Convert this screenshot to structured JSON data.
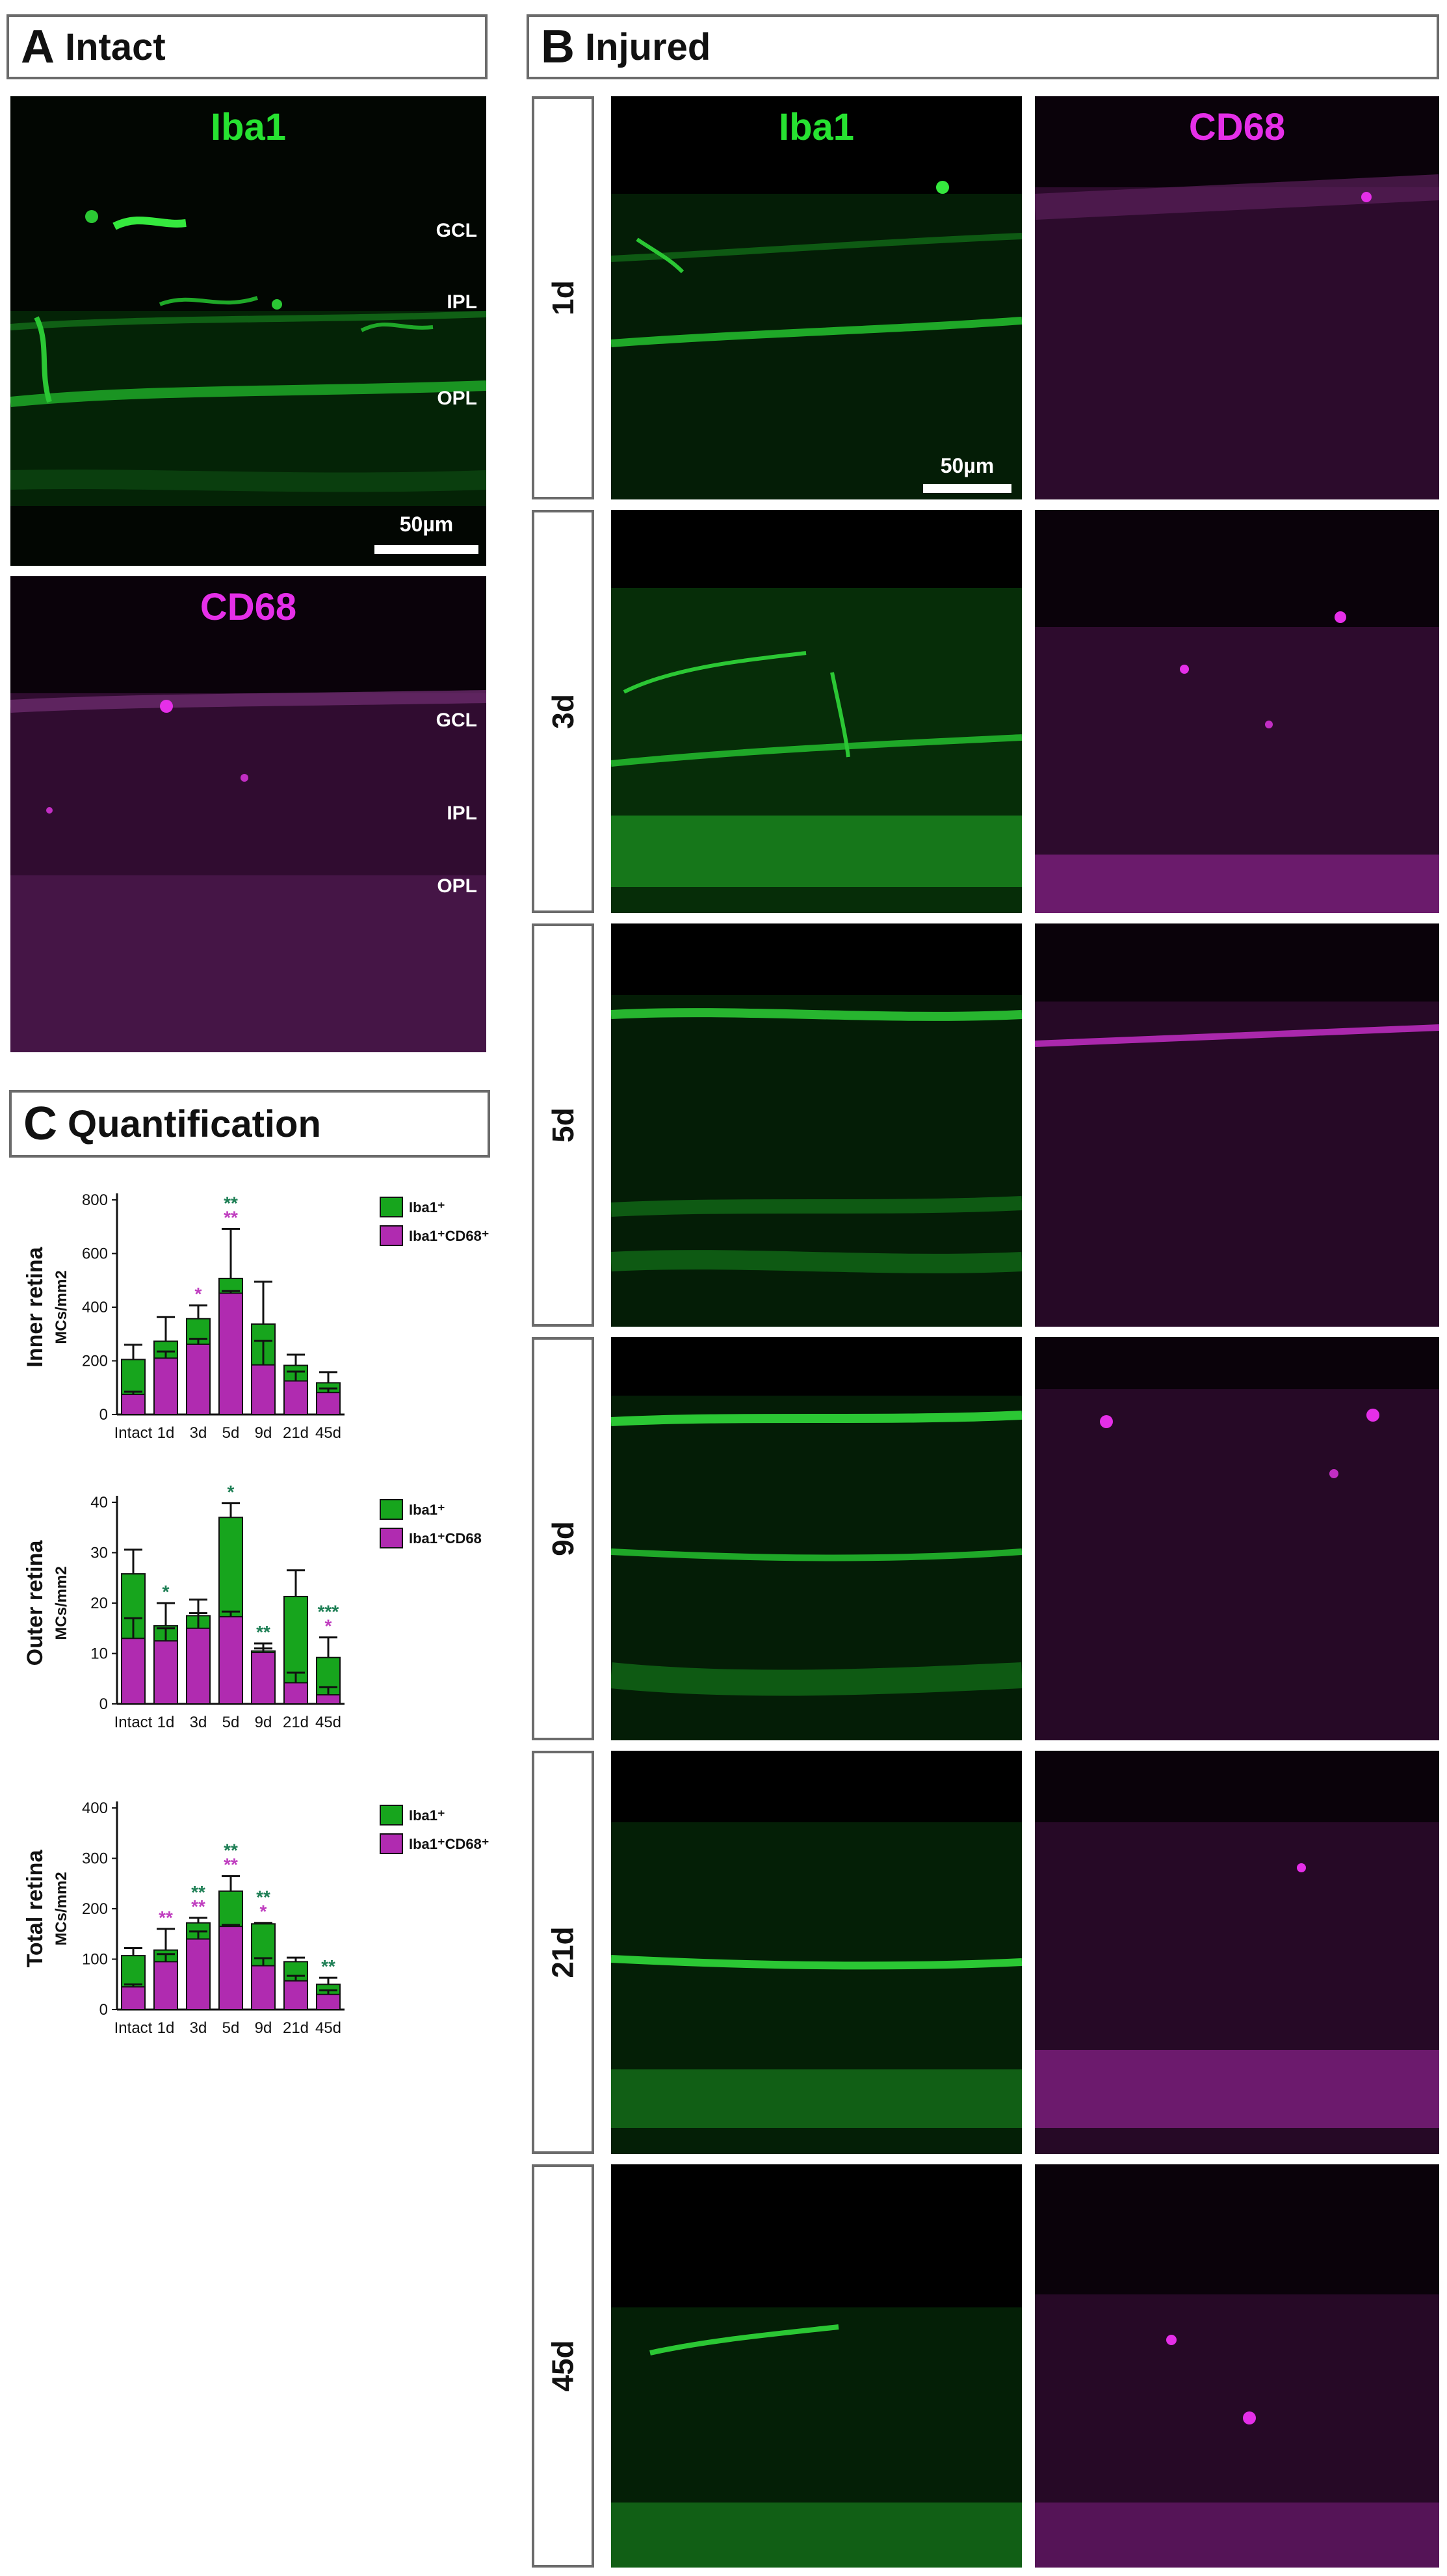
{
  "panels": {
    "A": {
      "letter": "A",
      "title": "Intact"
    },
    "B": {
      "letter": "B",
      "title": "Injured"
    },
    "C": {
      "letter": "C",
      "title": "Quantification"
    }
  },
  "image_labels": {
    "iba1": "Iba1",
    "cd68": "CD68",
    "gcl": "GCL",
    "ipl": "IPL",
    "opl": "OPL",
    "scale": "50µm"
  },
  "timepoints": [
    "1d",
    "3d",
    "5d",
    "9d",
    "21d",
    "45d"
  ],
  "colors": {
    "green": "#17a51d",
    "magenta": "#b02bb0",
    "green_sig": "#1e7f55",
    "magenta_sig": "#c03fc0",
    "label_green": "#27e231",
    "label_magenta": "#e52fe8"
  },
  "chart_data": [
    {
      "type": "bar",
      "stacked": "overlay",
      "ylabel_main": "Inner retina",
      "ylabel_sub": "MCs/mm2",
      "categories": [
        "Intact",
        "1d",
        "3d",
        "5d",
        "9d",
        "21d",
        "45d"
      ],
      "ylim": [
        0,
        800
      ],
      "yticks": [
        0,
        200,
        400,
        600,
        800
      ],
      "series": [
        {
          "name": "Iba1⁺",
          "values": [
            205,
            273,
            357,
            507,
            337,
            183,
            118
          ],
          "errors": [
            55,
            90,
            50,
            185,
            158,
            40,
            40
          ]
        },
        {
          "name": "Iba1⁺CD68⁺",
          "values": [
            75,
            210,
            262,
            452,
            185,
            125,
            82
          ],
          "errors": [
            10,
            25,
            20,
            8,
            90,
            35,
            15
          ]
        }
      ],
      "significance": [
        {
          "category": "3d",
          "green": "",
          "magenta": "*"
        },
        {
          "category": "5d",
          "green": "**",
          "magenta": "**"
        }
      ],
      "legend": "top-right"
    },
    {
      "type": "bar",
      "stacked": "overlay",
      "ylabel_main": "Outer retina",
      "ylabel_sub": "MCs/mm2",
      "categories": [
        "Intact",
        "1d",
        "3d",
        "5d",
        "9d",
        "21d",
        "45d"
      ],
      "ylim": [
        0,
        40
      ],
      "yticks": [
        0,
        10,
        20,
        30,
        40
      ],
      "series": [
        {
          "name": "Iba1⁺",
          "values": [
            25.8,
            15.5,
            17.5,
            37.0,
            10.5,
            21.3,
            9.2
          ],
          "errors": [
            4.8,
            4.5,
            3.2,
            2.8,
            1.5,
            5.2,
            4.0
          ]
        },
        {
          "name": "Iba1⁺CD68",
          "values": [
            13.0,
            12.5,
            15.0,
            17.3,
            10.2,
            4.2,
            1.8
          ],
          "errors": [
            4.0,
            2.5,
            3.0,
            1.0,
            0.8,
            2.0,
            1.5
          ]
        }
      ],
      "significance": [
        {
          "category": "1d",
          "green": "*",
          "magenta": ""
        },
        {
          "category": "5d",
          "green": "*",
          "magenta": ""
        },
        {
          "category": "9d",
          "green": "**",
          "magenta": ""
        },
        {
          "category": "45d",
          "green": "***",
          "magenta": "*"
        }
      ],
      "legend": "top-right"
    },
    {
      "type": "bar",
      "stacked": "overlay",
      "ylabel_main": "Total retina",
      "ylabel_sub": "MCs/mm2",
      "categories": [
        "Intact",
        "1d",
        "3d",
        "5d",
        "9d",
        "21d",
        "45d"
      ],
      "ylim": [
        0,
        400
      ],
      "yticks": [
        0,
        100,
        200,
        300,
        400
      ],
      "series": [
        {
          "name": "Iba1⁺",
          "values": [
            107,
            118,
            172,
            235,
            170,
            95,
            50
          ],
          "errors": [
            15,
            42,
            10,
            30,
            2,
            8,
            13
          ]
        },
        {
          "name": "Iba1⁺CD68⁺",
          "values": [
            45,
            95,
            140,
            165,
            87,
            57,
            30
          ],
          "errors": [
            5,
            15,
            15,
            3,
            15,
            10,
            8
          ]
        }
      ],
      "significance": [
        {
          "category": "1d",
          "green": "",
          "magenta": "**"
        },
        {
          "category": "3d",
          "green": "**",
          "magenta": "**"
        },
        {
          "category": "5d",
          "green": "**",
          "magenta": "**"
        },
        {
          "category": "9d",
          "green": "**",
          "magenta": "*"
        },
        {
          "category": "45d",
          "green": "**",
          "magenta": ""
        }
      ],
      "legend": "top-right"
    }
  ]
}
